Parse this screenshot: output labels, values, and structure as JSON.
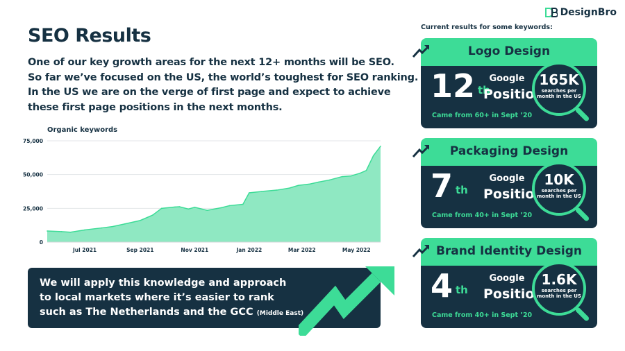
{
  "page": {
    "title": "SEO Results",
    "intro_lines": [
      "One of our key growth areas for the next 12+ months will be SEO.",
      "So far we’ve focused on the US, the world’s toughest for SEO ranking.",
      "In the US we are on the verge of first page and expect to achieve",
      "these first page positions in the next months."
    ],
    "brand": "DesignBro",
    "current_results_label": "Current results for some keywords:"
  },
  "banner": {
    "lines": [
      "We will apply this knowledge and approach",
      "to local markets where it’s easier to rank",
      "such as The Netherlands and the GCC"
    ],
    "suffix": "(Middle East)"
  },
  "cards": [
    {
      "title": "Logo Design",
      "rank": "12",
      "suffix": "th",
      "google": "Google",
      "position": "Position",
      "volume": "165K",
      "volume_caption": "searches per month in the US",
      "came_from": "Came from 60+ in Sept ’20"
    },
    {
      "title": "Packaging Design",
      "rank": "7",
      "suffix": "th",
      "google": "Google",
      "position": "Position",
      "volume": "10K",
      "volume_caption": "searches per month in the US",
      "came_from": "Came from 40+ in Sept ’20"
    },
    {
      "title": "Brand Identity Design",
      "rank": "4",
      "suffix": "th",
      "google": "Google",
      "position": "Position",
      "volume": "1.6K",
      "volume_caption": "searches per month in the US",
      "came_from": "Came from 40+ in Sept ’20"
    }
  ],
  "colors": {
    "navy": "#163142",
    "green": "#3ddc97",
    "area_fill": "#8fe8c2"
  },
  "chart_data": {
    "type": "area",
    "title": "Organic keywords",
    "xlabel": "",
    "ylabel": "",
    "ylim": [
      0,
      75000
    ],
    "yticks": [
      "0",
      "25,000",
      "50,000",
      "75,000"
    ],
    "ytick_values": [
      0,
      25000,
      50000,
      75000
    ],
    "xticks": [
      "Jul 2021",
      "Sep 2021",
      "Nov 2021",
      "Jan 2022",
      "Mar 2022",
      "May 2022"
    ],
    "xtick_positions": [
      "2021-07-01",
      "2021-09-01",
      "2021-11-01",
      "2022-01-01",
      "2022-03-01",
      "2022-05-01"
    ],
    "xlim": [
      "2021-05-20",
      "2022-05-28"
    ],
    "grid": true,
    "series": [
      {
        "x": [
          "2021-05-20",
          "2021-06-05",
          "2021-06-15",
          "2021-07-01",
          "2021-07-20",
          "2021-08-01",
          "2021-08-15",
          "2021-09-01",
          "2021-09-15",
          "2021-09-25",
          "2021-10-10",
          "2021-10-15",
          "2021-10-25",
          "2021-11-01",
          "2021-11-15",
          "2021-12-01",
          "2021-12-10",
          "2021-12-25",
          "2022-01-01",
          "2022-01-15",
          "2022-02-01",
          "2022-02-15",
          "2022-02-25",
          "2022-03-10",
          "2022-03-20",
          "2022-04-01",
          "2022-04-15",
          "2022-04-25",
          "2022-05-05",
          "2022-05-12",
          "2022-05-20",
          "2022-05-28"
        ],
        "values": [
          8200,
          7800,
          7300,
          9000,
          10500,
          11500,
          13500,
          16000,
          20000,
          25000,
          26000,
          26200,
          24500,
          25800,
          23500,
          25500,
          27000,
          28000,
          36500,
          37500,
          38500,
          40000,
          42000,
          43000,
          44500,
          46000,
          48500,
          49000,
          51000,
          53000,
          64000,
          71000
        ]
      }
    ]
  }
}
